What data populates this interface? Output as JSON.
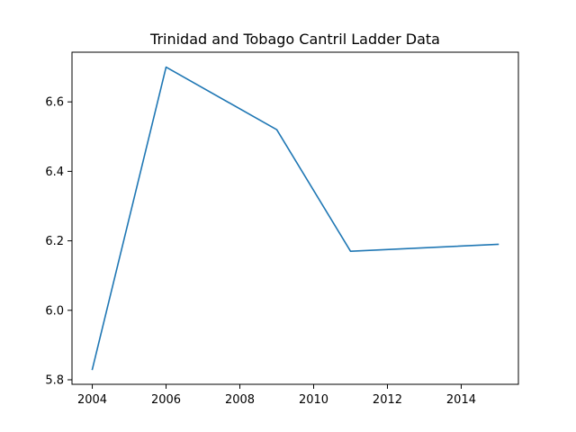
{
  "chart_data": {
    "type": "line",
    "title": "Trinidad and Tobago Cantril Ladder Data",
    "xlabel": "",
    "ylabel": "",
    "x": [
      2004,
      2006,
      2009,
      2011,
      2015
    ],
    "series": [
      {
        "values": [
          5.83,
          6.7,
          6.52,
          6.17,
          6.19
        ]
      }
    ],
    "x_ticks": [
      2004,
      2006,
      2008,
      2010,
      2012,
      2014
    ],
    "y_ticks": [
      5.8,
      6.0,
      6.2,
      6.4,
      6.6
    ],
    "x_tick_labels": [
      "2004",
      "2006",
      "2008",
      "2010",
      "2012",
      "2014"
    ],
    "y_tick_labels": [
      "5.8",
      "6.0",
      "6.2",
      "6.4",
      "6.6"
    ],
    "xlim": [
      2003.45,
      2015.55
    ],
    "ylim": [
      5.787,
      6.743
    ],
    "grid": false,
    "line_color": "#1f77b4"
  }
}
